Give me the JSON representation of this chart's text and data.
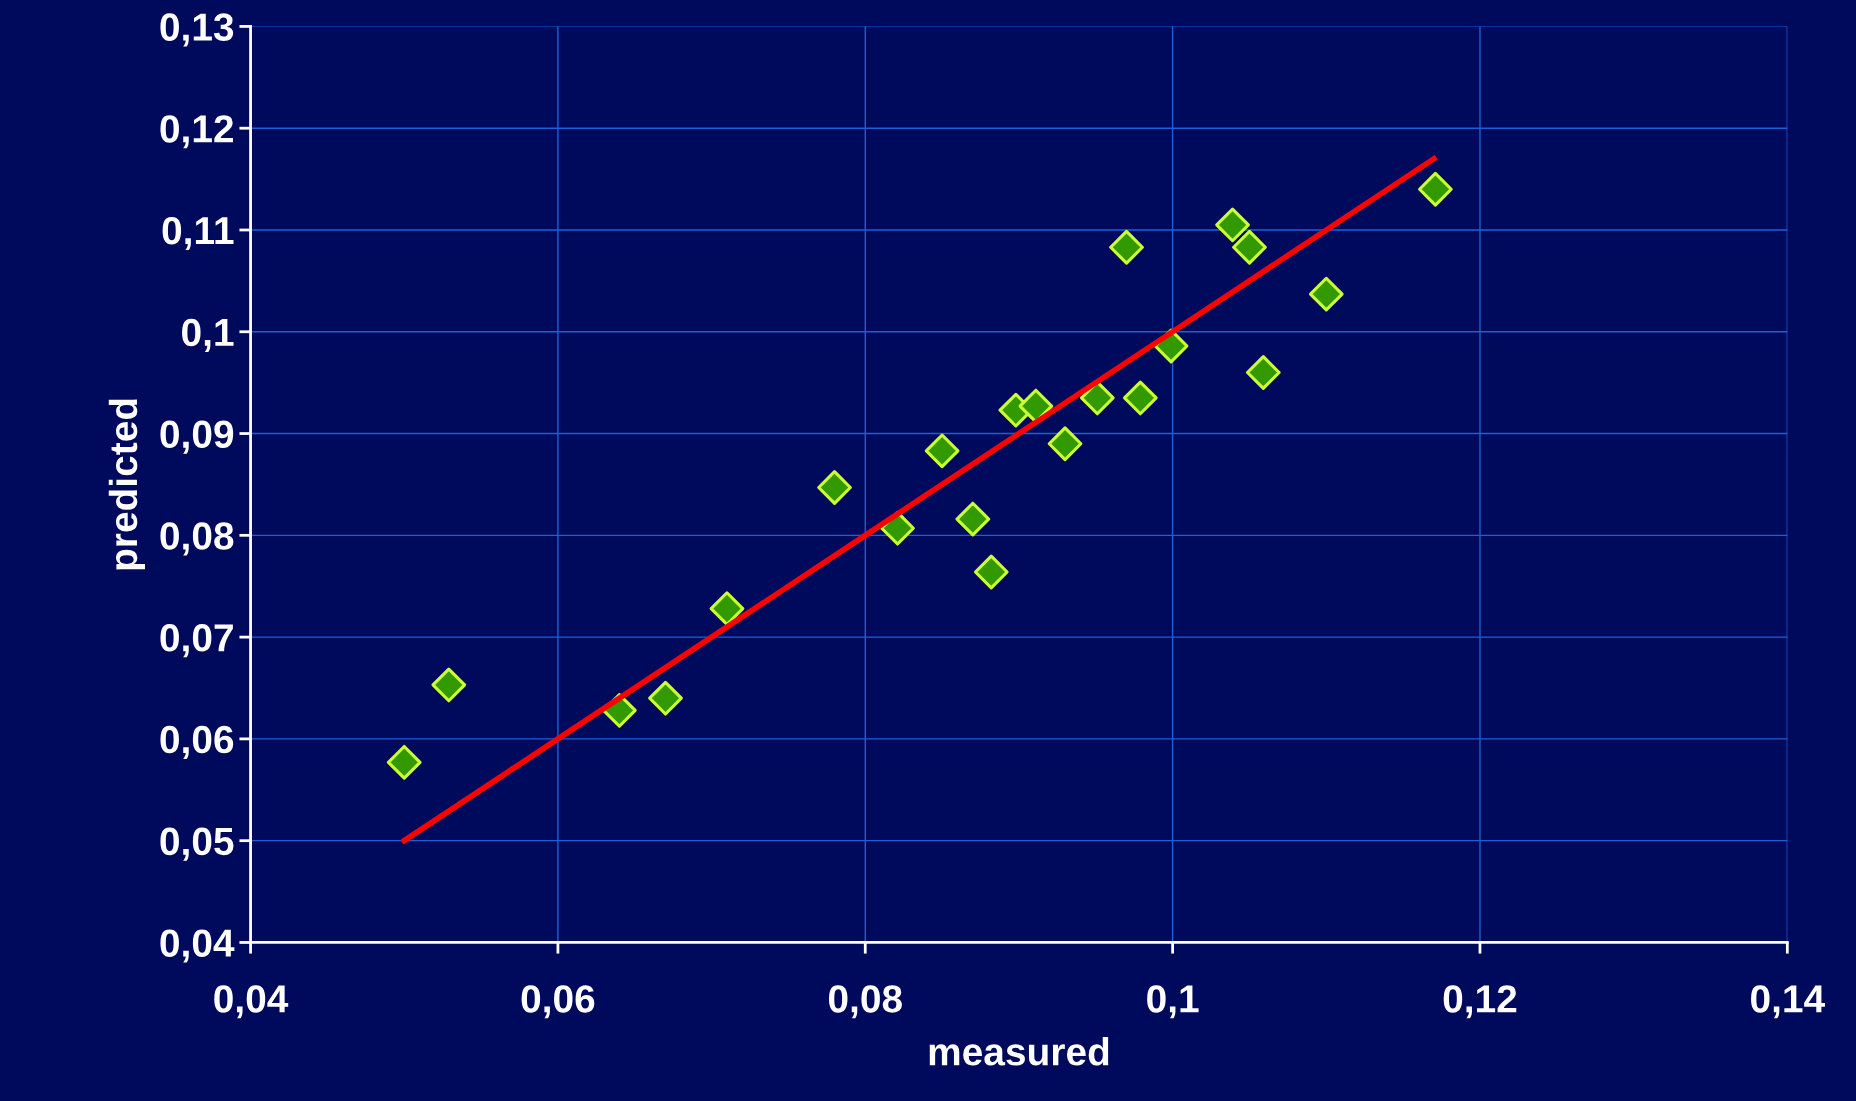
{
  "chart_data": {
    "type": "scatter",
    "xlabel": "measured",
    "ylabel": "predicted",
    "xlim": [
      0.04,
      0.14
    ],
    "ylim": [
      0.04,
      0.13
    ],
    "xticks": [
      {
        "value": 0.04,
        "label": "0,04"
      },
      {
        "value": 0.06,
        "label": "0,06"
      },
      {
        "value": 0.08,
        "label": "0,08"
      },
      {
        "value": 0.1,
        "label": "0,1"
      },
      {
        "value": 0.12,
        "label": "0,12"
      },
      {
        "value": 0.14,
        "label": "0,14"
      }
    ],
    "yticks": [
      {
        "value": 0.04,
        "label": "0,04"
      },
      {
        "value": 0.05,
        "label": "0,05"
      },
      {
        "value": 0.06,
        "label": "0,06"
      },
      {
        "value": 0.07,
        "label": "0,07"
      },
      {
        "value": 0.08,
        "label": "0,08"
      },
      {
        "value": 0.09,
        "label": "0,09"
      },
      {
        "value": 0.1,
        "label": "0,1"
      },
      {
        "value": 0.11,
        "label": "0,11"
      },
      {
        "value": 0.12,
        "label": "0,12"
      },
      {
        "value": 0.13,
        "label": "0,13"
      }
    ],
    "grid": true,
    "legend": false,
    "series": [
      {
        "marker": "diamond",
        "color": "#339900",
        "x": [
          0.05,
          0.0529,
          0.064,
          0.067,
          0.071,
          0.078,
          0.0821,
          0.085,
          0.087,
          0.0882,
          0.0898,
          0.0911,
          0.093,
          0.0951,
          0.097,
          0.0979,
          0.0999,
          0.1039,
          0.105,
          0.1059,
          0.11,
          0.1171
        ],
        "values": [
          0.0577,
          0.0653,
          0.0628,
          0.064,
          0.0728,
          0.0847,
          0.0807,
          0.0883,
          0.0816,
          0.0764,
          0.0923,
          0.0927,
          0.089,
          0.0935,
          0.1083,
          0.0935,
          0.0986,
          0.1105,
          0.1083,
          0.096,
          0.1037,
          0.114
        ]
      },
      {
        "type": "line",
        "marker": "none",
        "line_style": "solid",
        "color": "#ff0000",
        "x": [
          0.05,
          0.06,
          0.07,
          0.08,
          0.09,
          0.1,
          0.11,
          0.117
        ],
        "values": [
          0.05,
          0.06,
          0.07,
          0.08,
          0.09,
          0.1,
          0.11,
          0.117
        ]
      }
    ]
  }
}
